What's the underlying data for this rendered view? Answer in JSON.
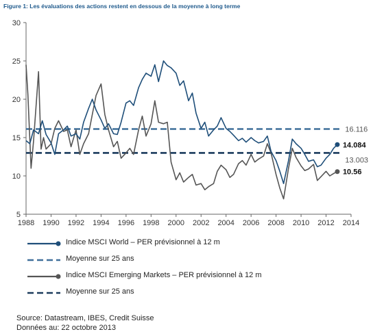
{
  "figure_title": "Figure 1: Les évaluations des actions restent en dessous de la moyenne à long terme",
  "chart_data": {
    "type": "line",
    "title": "Figure 1: Les évaluations des actions restent en dessous de la moyenne à long terme",
    "xlim": [
      1988,
      2014
    ],
    "ylim": [
      5,
      30
    ],
    "x_ticks": [
      "1988",
      "1990",
      "1992",
      "1994",
      "1996",
      "1998",
      "2000",
      "2002",
      "2004",
      "2006",
      "2008",
      "2010",
      "2012",
      "2014"
    ],
    "y_ticks": [
      "5",
      "10",
      "15",
      "20",
      "25",
      "30"
    ],
    "grid": false,
    "legend_position": "bottom",
    "colors": {
      "world": "#1e4e79",
      "em": "#555555"
    },
    "series": [
      {
        "name": "Indice MSCI World – PER prévisionnel à 12 m",
        "color": "#1e4e79",
        "end_label": "14.084",
        "x": [
          1988.0,
          1988.3,
          1988.6,
          1989.0,
          1989.3,
          1989.6,
          1990.0,
          1990.3,
          1990.6,
          1991.0,
          1991.3,
          1991.6,
          1992.0,
          1992.3,
          1992.6,
          1993.0,
          1993.3,
          1993.6,
          1994.0,
          1994.3,
          1994.6,
          1995.0,
          1995.3,
          1995.6,
          1996.0,
          1996.3,
          1996.6,
          1997.0,
          1997.3,
          1997.6,
          1998.0,
          1998.3,
          1998.6,
          1999.0,
          1999.3,
          1999.6,
          2000.0,
          2000.3,
          2000.6,
          2001.0,
          2001.3,
          2001.6,
          2002.0,
          2002.3,
          2002.6,
          2003.0,
          2003.3,
          2003.6,
          2004.0,
          2004.3,
          2004.6,
          2005.0,
          2005.3,
          2005.6,
          2006.0,
          2006.3,
          2006.6,
          2007.0,
          2007.3,
          2007.6,
          2008.0,
          2008.3,
          2008.6,
          2009.0,
          2009.3,
          2009.6,
          2010.0,
          2010.3,
          2010.6,
          2011.0,
          2011.3,
          2011.6,
          2012.0,
          2012.3,
          2012.6,
          2012.9
        ],
        "values": [
          14.6,
          14.2,
          16.0,
          15.5,
          17.2,
          15.4,
          14.3,
          12.8,
          15.5,
          16.0,
          16.5,
          15.2,
          15.5,
          14.8,
          17.0,
          18.8,
          20.0,
          18.6,
          17.3,
          16.2,
          16.8,
          15.5,
          15.4,
          17.0,
          19.5,
          19.8,
          19.2,
          21.5,
          22.6,
          23.4,
          23.0,
          24.5,
          22.3,
          25.0,
          24.4,
          24.1,
          23.4,
          21.8,
          22.4,
          19.8,
          20.8,
          18.2,
          16.2,
          17.0,
          15.2,
          16.0,
          16.5,
          17.6,
          16.2,
          15.8,
          15.3,
          14.6,
          14.9,
          14.4,
          15.0,
          14.6,
          14.3,
          14.5,
          15.2,
          13.2,
          12.0,
          10.6,
          9.0,
          12.0,
          14.8,
          14.2,
          13.6,
          12.8,
          11.9,
          12.1,
          11.2,
          11.4,
          12.3,
          12.8,
          13.6,
          14.084
        ]
      },
      {
        "name": "Moyenne sur 25 ans",
        "color": "#1e4e79",
        "style": "dashed",
        "end_label": "16.116",
        "x": [
          1988,
          2013.2
        ],
        "values": [
          16.116,
          16.116
        ]
      },
      {
        "name": "Indice MSCI Emerging Markets – PER prévisionnel à 12 m",
        "color": "#555555",
        "end_label": "10.56",
        "x": [
          1988.0,
          1988.15,
          1988.4,
          1988.6,
          1989.0,
          1989.2,
          1989.4,
          1989.6,
          1990.0,
          1990.3,
          1990.6,
          1991.0,
          1991.3,
          1991.6,
          1992.0,
          1992.3,
          1992.6,
          1993.0,
          1993.3,
          1993.6,
          1994.0,
          1994.3,
          1994.6,
          1995.0,
          1995.3,
          1995.6,
          1996.0,
          1996.3,
          1996.6,
          1997.0,
          1997.3,
          1997.6,
          1998.0,
          1998.3,
          1998.6,
          1999.0,
          1999.3,
          1999.6,
          2000.0,
          2000.3,
          2000.6,
          2001.0,
          2001.3,
          2001.6,
          2002.0,
          2002.3,
          2002.6,
          2003.0,
          2003.3,
          2003.6,
          2004.0,
          2004.3,
          2004.6,
          2005.0,
          2005.3,
          2005.6,
          2006.0,
          2006.3,
          2006.6,
          2007.0,
          2007.3,
          2007.6,
          2008.0,
          2008.3,
          2008.6,
          2009.0,
          2009.3,
          2009.6,
          2010.0,
          2010.3,
          2010.6,
          2011.0,
          2011.3,
          2011.6,
          2012.0,
          2012.3,
          2012.6,
          2012.9
        ],
        "values": [
          24.5,
          20.6,
          11.0,
          14.5,
          23.6,
          13.5,
          15.0,
          13.5,
          14.2,
          16.2,
          17.2,
          15.8,
          16.0,
          13.8,
          16.0,
          12.8,
          14.2,
          15.5,
          18.0,
          20.5,
          22.0,
          18.0,
          16.0,
          13.8,
          14.5,
          12.3,
          13.0,
          13.6,
          12.8,
          16.0,
          17.8,
          15.2,
          16.8,
          19.8,
          17.0,
          16.8,
          17.0,
          11.8,
          9.5,
          10.4,
          9.2,
          9.8,
          10.2,
          8.8,
          9.0,
          8.2,
          8.6,
          9.0,
          10.6,
          11.4,
          10.8,
          9.8,
          10.2,
          11.6,
          12.0,
          11.4,
          12.8,
          11.8,
          12.2,
          12.6,
          14.2,
          13.0,
          10.2,
          8.4,
          7.0,
          11.0,
          13.6,
          12.4,
          11.3,
          10.7,
          10.9,
          11.5,
          9.4,
          9.9,
          10.6,
          10.0,
          10.3,
          10.56
        ]
      },
      {
        "name": "Moyenne sur 25 ans",
        "color": "#1e4e79",
        "style": "dashed",
        "end_label": "13.003",
        "x": [
          1988,
          2013.2
        ],
        "values": [
          13.003,
          13.003
        ]
      }
    ]
  },
  "legend": [
    {
      "label": "Indice MSCI World – PER prévisionnel à 12 m",
      "kind": "line-dot",
      "color": "#1e4e79"
    },
    {
      "label": "Moyenne sur 25 ans",
      "kind": "dash",
      "color": "#3f6f9a"
    },
    {
      "label": "Indice MSCI Emerging Markets – PER prévisionnel à 12 m",
      "kind": "line-dot",
      "color": "#555555"
    },
    {
      "label": "Moyenne sur 25 ans",
      "kind": "dash",
      "color": "#1a3a5c"
    }
  ],
  "footer": {
    "source": "Source: Datastream, IBES, Credit Suisse",
    "date": "Données au: 22 octobre 2013"
  }
}
